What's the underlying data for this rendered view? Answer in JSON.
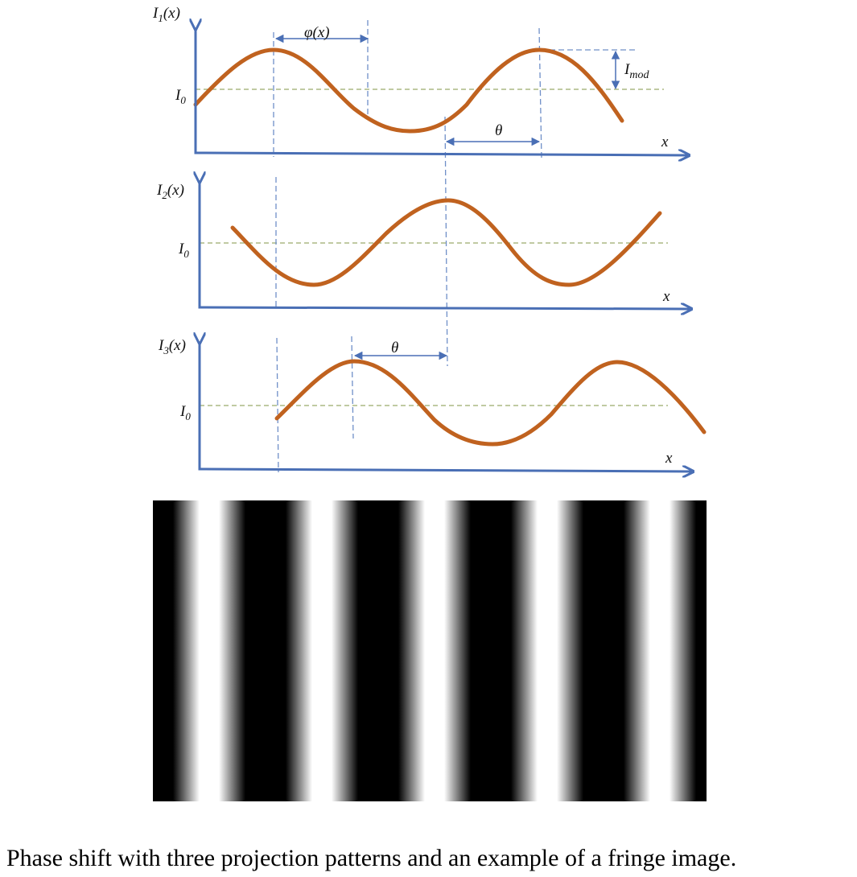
{
  "panels": [
    {
      "label": {
        "symbol": "I",
        "subscript": "1",
        "argument": "(x)"
      },
      "baseline": {
        "symbol": "I",
        "subscript": "0"
      },
      "axis_label": "x"
    },
    {
      "label": {
        "symbol": "I",
        "subscript": "2",
        "argument": "(x)"
      },
      "baseline": {
        "symbol": "I",
        "subscript": "0"
      },
      "axis_label": "x"
    },
    {
      "label": {
        "symbol": "I",
        "subscript": "3",
        "argument": "(x)"
      },
      "baseline": {
        "symbol": "I",
        "subscript": "0"
      },
      "axis_label": "x"
    }
  ],
  "annotations": {
    "phase": "φ(x)",
    "shift_1": "θ",
    "shift_2": "θ",
    "modulation": {
      "symbol": "I",
      "subscript": "mod"
    }
  },
  "caption": "Phase shift with three projection patterns and an example of a fringe image."
}
